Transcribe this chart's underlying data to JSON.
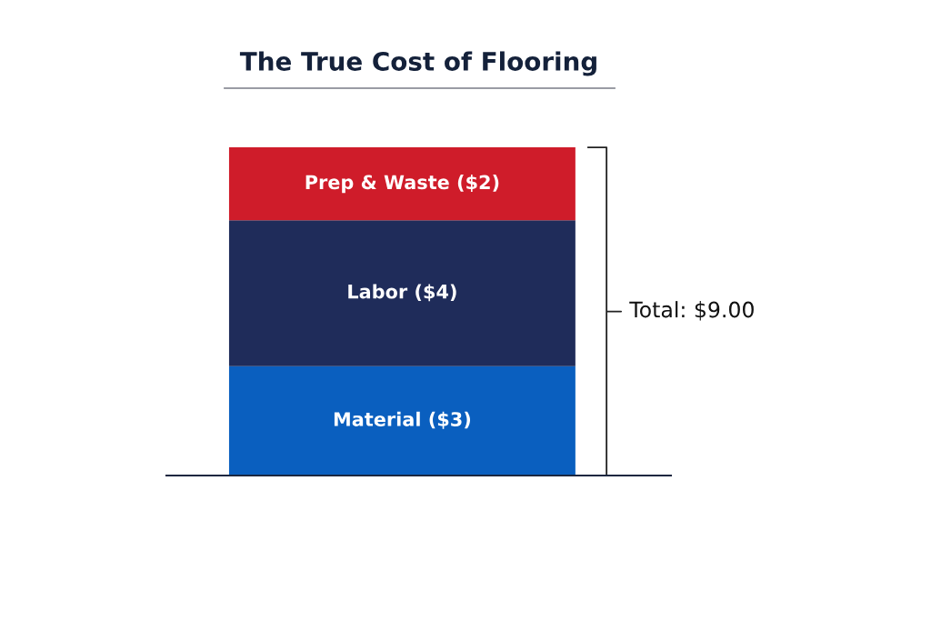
{
  "chart_data": {
    "type": "bar",
    "stacked": true,
    "title": "The True Cost of Flooring",
    "categories": [
      null
    ],
    "series": [
      {
        "color": "#0a5fbf",
        "values": [
          3
        ],
        "value_labels": [
          "Material ($3)"
        ]
      },
      {
        "color": "#1f2c5a",
        "values": [
          4
        ],
        "value_labels": [
          "Labor ($4)"
        ]
      },
      {
        "color": "#cf1c2a",
        "values": [
          2
        ],
        "value_labels": [
          "Prep & Waste ($2)"
        ]
      }
    ],
    "totals": [
      "Total: $9.00"
    ]
  }
}
